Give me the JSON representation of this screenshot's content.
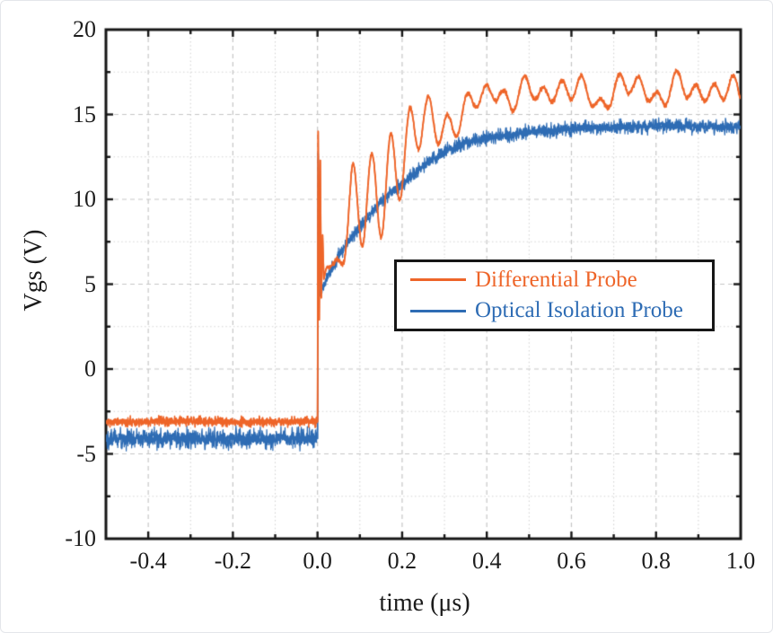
{
  "chart_data": {
    "type": "line",
    "title": "",
    "xlabel": "time (μs)",
    "ylabel": "Vgs (V)",
    "xlim": [
      -0.5,
      1.0
    ],
    "ylim": [
      -10,
      20
    ],
    "x_major_ticks": [
      -0.4,
      -0.2,
      0.0,
      0.2,
      0.4,
      0.6,
      0.8,
      1.0
    ],
    "x_tick_labels": [
      "-0.4",
      "-0.2",
      "0.0",
      "0.2",
      "0.4",
      "0.6",
      "0.8",
      "1.0"
    ],
    "x_minor_step": 0.1,
    "y_major_ticks": [
      20,
      15,
      10,
      5,
      0,
      -5,
      -10
    ],
    "y_tick_labels": [
      "20",
      "15",
      "10",
      "5",
      "0",
      "-5",
      "-10"
    ],
    "y_minor_step": 2.5,
    "grid": {
      "show_major": true,
      "show_minor": true,
      "style": "dashed",
      "major_color": "#c6c6c6",
      "minor_color": "#d4d4d4"
    },
    "axis_color": "#161616",
    "tick_label_color": "#1d1d1d",
    "legend": {
      "position": "inside-right-center",
      "background": "#ffffff",
      "border_color": "#161616",
      "entries": [
        {
          "label": "Differential Probe",
          "color": "#EE6529"
        },
        {
          "label": "Optical Isolation Probe",
          "color": "#2E6CB4"
        }
      ]
    },
    "series": [
      {
        "name": "Differential Probe",
        "color": "#EE6529",
        "pre_trigger_level": -3.1,
        "pre_trigger_noise_pp": 0.75,
        "spike_peak": 14.0,
        "spike_undershoot": 2.9,
        "transient": [
          [
            0,
            -3.1
          ],
          [
            0.0015,
            14.0
          ],
          [
            0.004,
            2.9
          ],
          [
            0.0065,
            12.3
          ],
          [
            0.009,
            4.2
          ],
          [
            0.012,
            7.9
          ],
          [
            0.015,
            5.3
          ],
          [
            0.02,
            5.9
          ]
        ],
        "trend": [
          [
            0.02,
            5.9
          ],
          [
            0.05,
            6.4
          ],
          [
            0.08,
            9.4
          ],
          [
            0.1,
            9.9
          ],
          [
            0.13,
            10.0
          ],
          [
            0.16,
            10.7
          ],
          [
            0.19,
            11.9
          ],
          [
            0.22,
            13.6
          ],
          [
            0.25,
            15.0
          ],
          [
            0.28,
            14.4
          ],
          [
            0.31,
            14.2
          ],
          [
            0.34,
            14.9
          ],
          [
            0.37,
            15.6
          ],
          [
            0.4,
            16.2
          ],
          [
            0.43,
            16.6
          ],
          [
            0.46,
            15.9
          ],
          [
            0.5,
            16.1
          ],
          [
            0.54,
            16.6
          ],
          [
            0.58,
            16.5
          ],
          [
            0.62,
            16.2
          ],
          [
            0.66,
            16.0
          ],
          [
            0.7,
            16.3
          ],
          [
            0.74,
            16.6
          ],
          [
            0.78,
            16.5
          ],
          [
            0.82,
            16.2
          ],
          [
            0.86,
            16.4
          ],
          [
            0.9,
            16.6
          ],
          [
            0.94,
            16.4
          ],
          [
            0.98,
            16.2
          ],
          [
            1.0,
            16.0
          ]
        ],
        "ringing": {
          "period_us": 0.045,
          "phase_us": 0.027,
          "amplitude": 2.7,
          "ramp_start": 0.04,
          "ramp_end": 0.085,
          "hold_until": 0.17,
          "decay_tau_us": 0.13,
          "floor": 0.55
        },
        "slow_wobble": {
          "start": 0.28,
          "amp1": 0.45,
          "period1": 0.12,
          "phase1": 0.9,
          "amp2": 0.25,
          "period2": 0.071,
          "phase2": 2.0
        },
        "noise_pp": 0.4,
        "settled_level": 16.3
      },
      {
        "name": "Optical Isolation Probe",
        "color": "#2E6CB4",
        "pre_trigger_level": -4.1,
        "pre_trigger_noise_pp": 1.55,
        "spike_peak": 12.7,
        "spike_undershoot": 4.3,
        "transient": [
          [
            0,
            -4.1
          ],
          [
            0.0015,
            12.7
          ],
          [
            0.005,
            4.3
          ],
          [
            0.008,
            4.6
          ]
        ],
        "trend": [
          [
            0.008,
            4.6
          ],
          [
            0.05,
            6.7
          ],
          [
            0.1,
            8.4
          ],
          [
            0.15,
            9.9
          ],
          [
            0.2,
            10.9
          ],
          [
            0.25,
            12.0
          ],
          [
            0.3,
            12.8
          ],
          [
            0.35,
            13.3
          ],
          [
            0.4,
            13.6
          ],
          [
            0.45,
            13.8
          ],
          [
            0.5,
            14.0
          ],
          [
            0.6,
            14.15
          ],
          [
            0.7,
            14.25
          ],
          [
            0.8,
            14.3
          ],
          [
            0.9,
            14.3
          ],
          [
            1.0,
            14.25
          ]
        ],
        "noise_pp": 1.1,
        "settled_level": 14.3
      }
    ]
  }
}
